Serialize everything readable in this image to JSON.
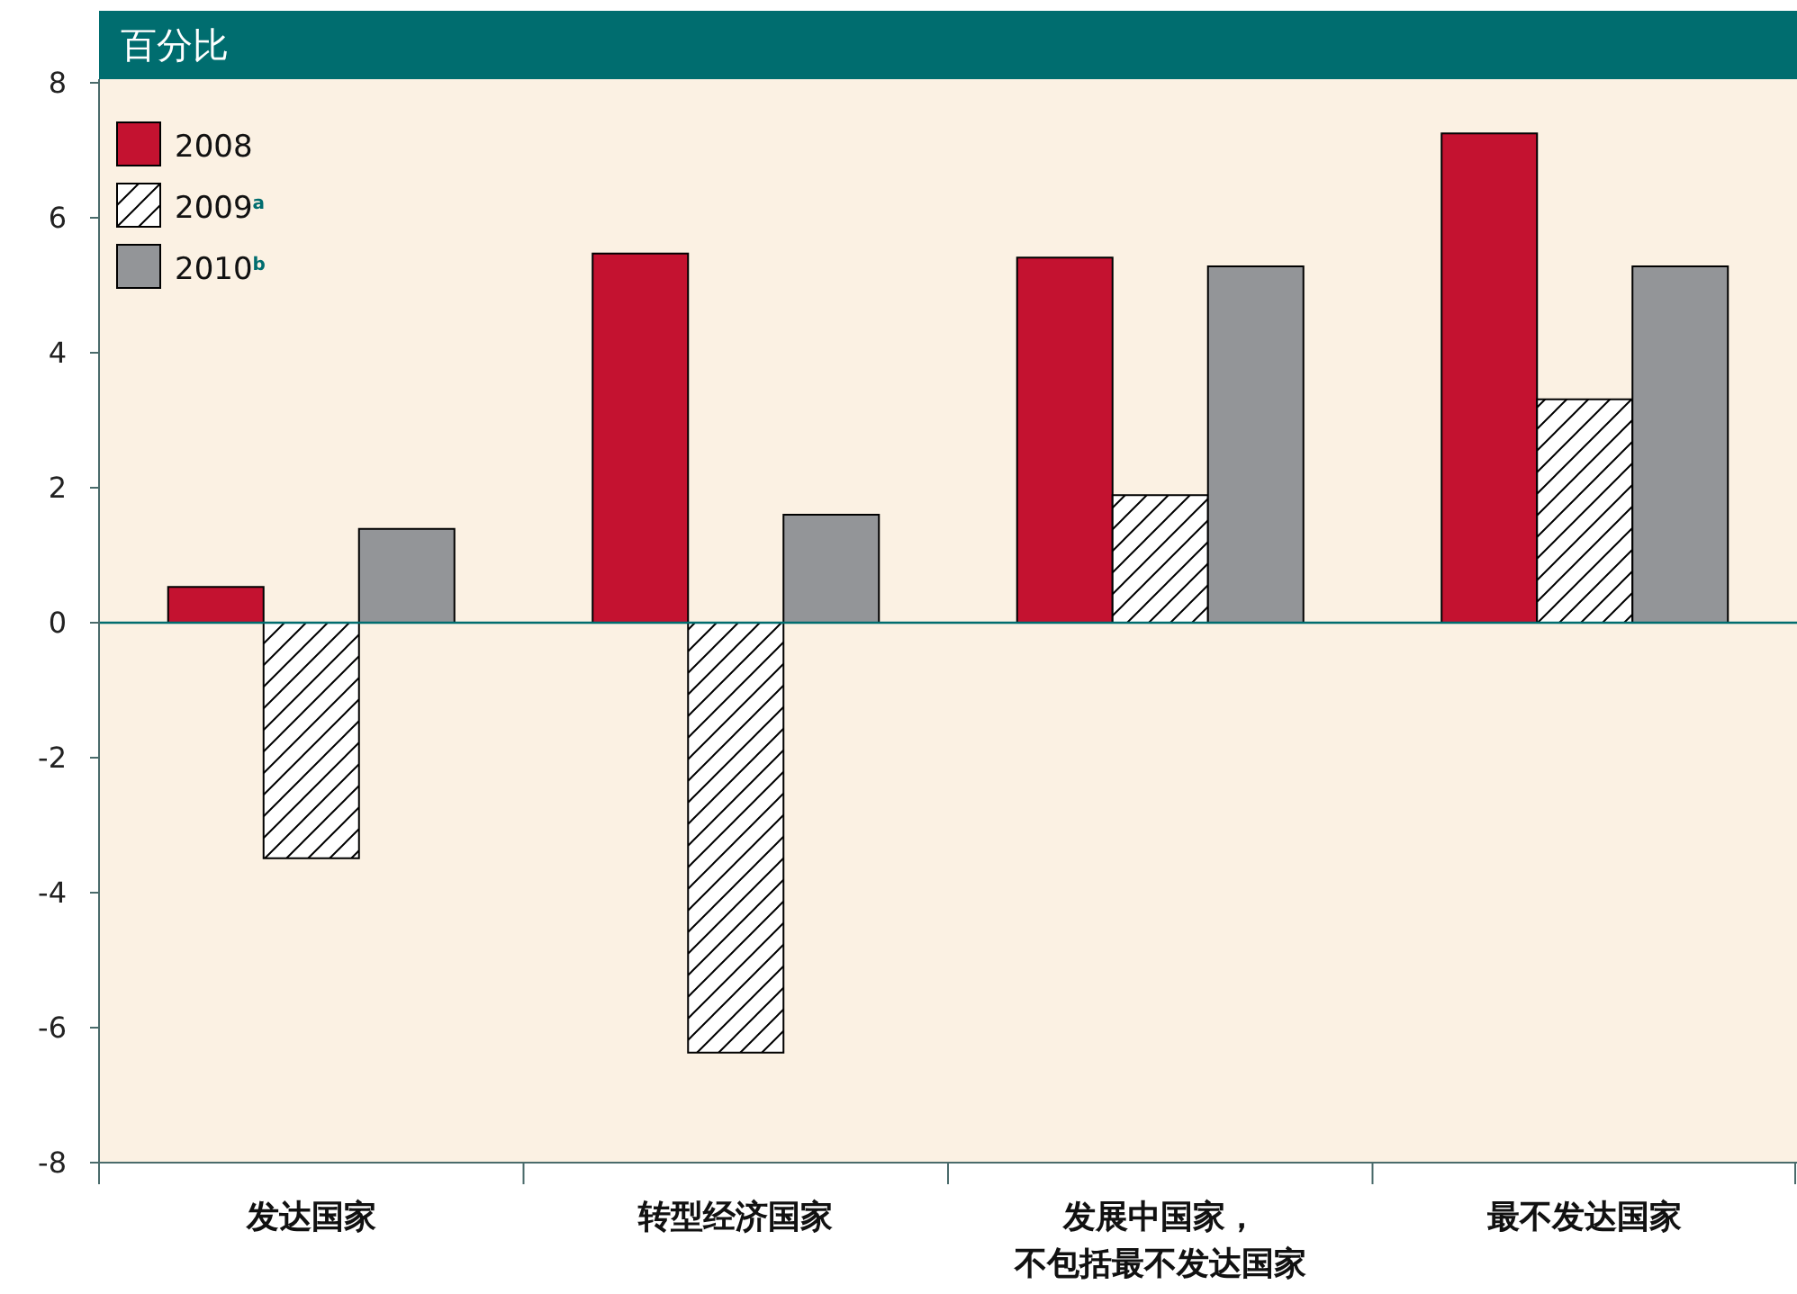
{
  "chart_data": {
    "type": "bar",
    "title": "百分比",
    "categories": [
      "发达国家",
      "转型经济国家",
      "发展中国家，不包括最不发达国家",
      "最不发达国家"
    ],
    "series": [
      {
        "name": "2008",
        "color": "#c41230",
        "values": [
          0.53,
          5.47,
          5.41,
          7.25
        ]
      },
      {
        "name": "2009$^{a}$",
        "color": "#000000",
        "values": [
          -3.49,
          -6.37,
          1.89,
          3.31
        ]
      },
      {
        "name": "2010$^{b}$",
        "color": "#939598",
        "values": [
          1.39,
          1.6,
          5.28,
          5.28
        ]
      }
    ],
    "ylim": [
      -8,
      8
    ],
    "yticks": [
      -8,
      -6,
      -4,
      -2,
      0,
      2,
      4,
      6,
      8
    ],
    "ref_lines": [
      {
        "axis": "y",
        "value": 0,
        "color": "#006d6f"
      }
    ],
    "grid": false,
    "legend": "top left"
  }
}
